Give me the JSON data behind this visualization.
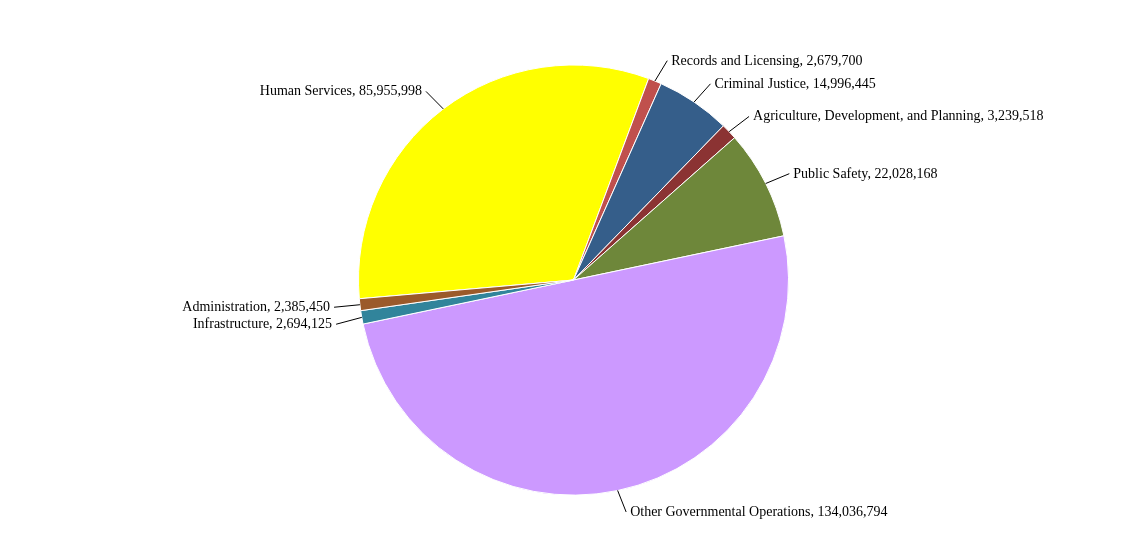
{
  "chart_data": {
    "type": "pie",
    "categories": [
      "Human Services",
      "Records and Licensing",
      "Criminal Justice",
      "Agriculture, Development, and Planning",
      "Public Safety",
      "Other Governmental Operations",
      "Infrastructure",
      "Administration"
    ],
    "values": [
      85955998,
      2679700,
      14996445,
      3239518,
      22028168,
      134036794,
      2694125,
      2385450
    ],
    "colors": [
      "#ffff00",
      "#c0504d",
      "#355e8a",
      "#8b3333",
      "#6e873a",
      "#cc99ff",
      "#31849b",
      "#9b5a2a"
    ],
    "value_labels": [
      "85,955,998",
      "2,679,700",
      "14,996,445",
      "3,239,518",
      "22,028,168",
      "134,036,794",
      "2,694,125",
      "2,385,450"
    ]
  }
}
